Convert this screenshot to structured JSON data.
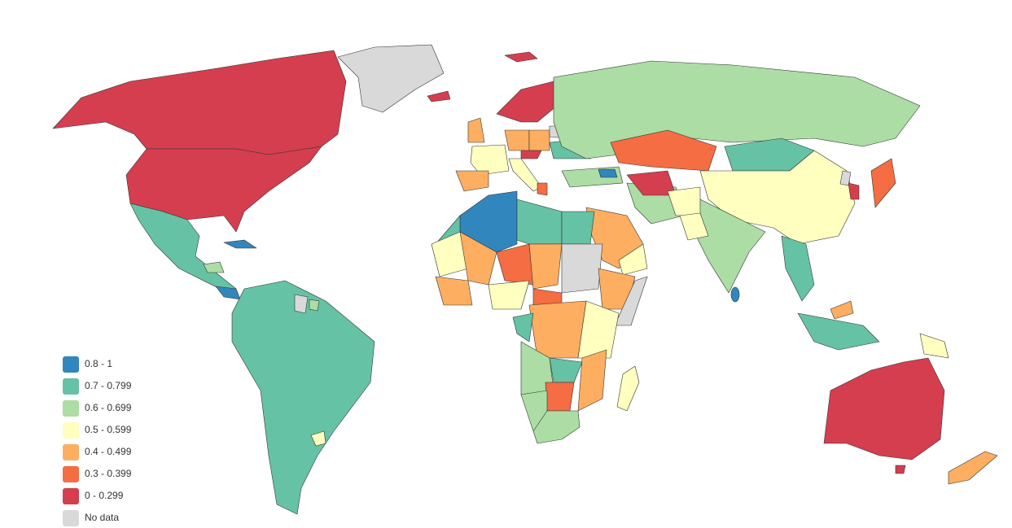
{
  "legend": {
    "items": [
      {
        "label": "0.8 - 1",
        "color": "#3186bd"
      },
      {
        "label": "0.7 - 0.799",
        "color": "#66c2a5"
      },
      {
        "label": "0.6 - 0.699",
        "color": "#abdda4"
      },
      {
        "label": "0.5 - 0.599",
        "color": "#ffffbf"
      },
      {
        "label": "0.4 - 0.499",
        "color": "#fdae61"
      },
      {
        "label": "0.3 - 0.399",
        "color": "#f46d43"
      },
      {
        "label": "0 - 0.299",
        "color": "#d53e4f"
      },
      {
        "label": "No data",
        "color": "#d9d9d9"
      }
    ]
  }
}
